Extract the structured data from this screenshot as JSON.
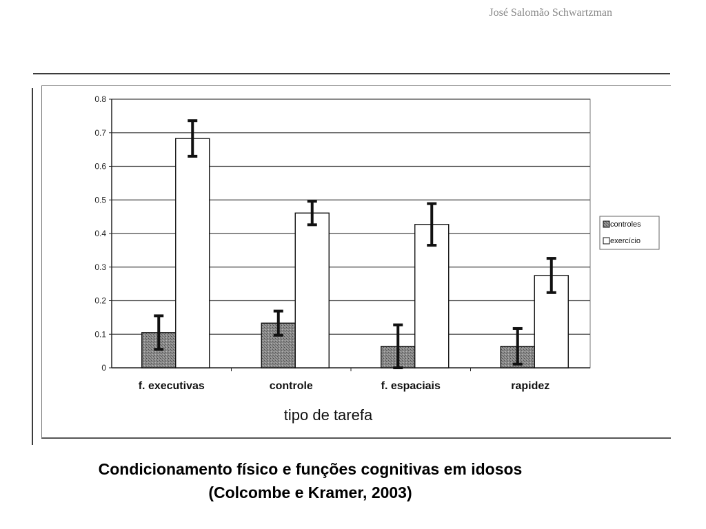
{
  "author": "José Salomão Schwartzman",
  "caption": {
    "line1": "Condicionamento físico e funções cognitivas em idosos",
    "line2": "(Colcombe e Kramer, 2003)"
  },
  "colors": {
    "controles": "#7d7d7d",
    "exercicio": "#ffffff",
    "error_bar": "#111111",
    "grid": "#444444"
  },
  "chart_data": {
    "type": "bar",
    "title": "",
    "xlabel": "tipo de tarefa",
    "ylabel": "",
    "ylim": [
      0,
      0.8
    ],
    "yticks": [
      "0",
      "0.1",
      "0.2",
      "0.3",
      "0.4",
      "0.5",
      "0.6",
      "0.7",
      "0.8"
    ],
    "grid": true,
    "legend_position": "right",
    "categories": [
      "f. executivas",
      "controle",
      "f. espaciais",
      "rapidez"
    ],
    "series": [
      {
        "name": "controles",
        "values": [
          0.105,
          0.133,
          0.064,
          0.064
        ],
        "error": [
          0.05,
          0.036,
          0.064,
          0.053
        ]
      },
      {
        "name": "exercício",
        "values": [
          0.683,
          0.461,
          0.427,
          0.275
        ],
        "error": [
          0.053,
          0.035,
          0.062,
          0.051
        ]
      }
    ]
  }
}
